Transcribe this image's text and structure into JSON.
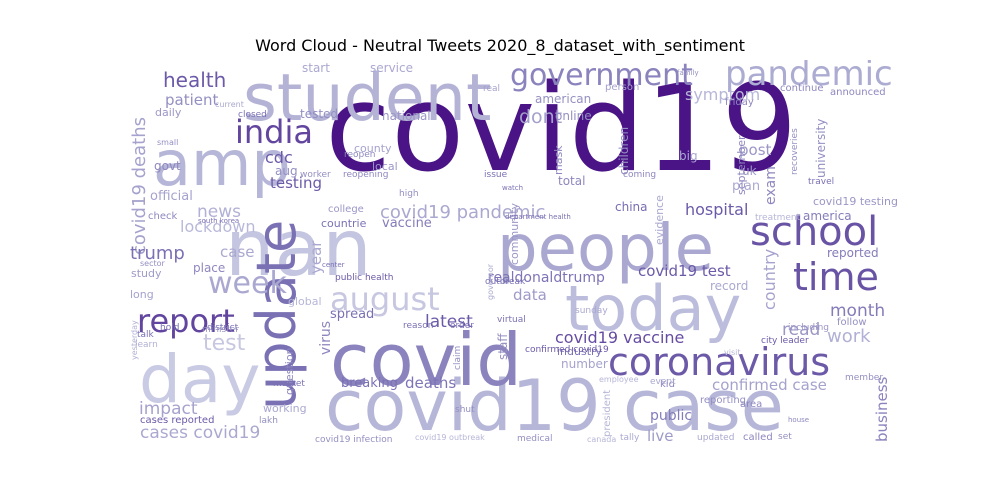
{
  "chart_data": {
    "type": "wordcloud",
    "title": "Word Cloud - Neutral Tweets 2020_8_dataset_with_sentiment",
    "colormap": "Purples",
    "words": [
      {
        "text": "covid19",
        "weight": 1.0
      },
      {
        "text": "covid19 case",
        "weight": 0.55
      },
      {
        "text": "nan",
        "weight": 0.6
      },
      {
        "text": "people",
        "weight": 0.6
      },
      {
        "text": "today",
        "weight": 0.58
      },
      {
        "text": "covid",
        "weight": 0.55
      },
      {
        "text": "student",
        "weight": 0.55
      },
      {
        "text": "amp",
        "weight": 0.52
      },
      {
        "text": "day",
        "weight": 0.5
      },
      {
        "text": "update",
        "weight": 0.5
      },
      {
        "text": "pandemic",
        "weight": 0.35
      },
      {
        "text": "school",
        "weight": 0.38
      },
      {
        "text": "coronavirus",
        "weight": 0.38
      },
      {
        "text": "government",
        "weight": 0.32
      },
      {
        "text": "india",
        "weight": 0.33
      },
      {
        "text": "time",
        "weight": 0.34
      },
      {
        "text": "report",
        "weight": 0.32
      },
      {
        "text": "week",
        "weight": 0.3
      },
      {
        "text": "august",
        "weight": 0.3
      },
      {
        "text": "health",
        "weight": 0.22
      },
      {
        "text": "covid19 deaths",
        "weight": 0.2
      },
      {
        "text": "covid19 pandemic",
        "weight": 0.2
      },
      {
        "text": "covid19 vaccine",
        "weight": 0.2
      },
      {
        "text": "covid19 test",
        "weight": 0.18
      },
      {
        "text": "cases covid19",
        "weight": 0.18
      },
      {
        "text": "month",
        "weight": 0.18
      },
      {
        "text": "trump",
        "weight": 0.18
      },
      {
        "text": "work",
        "weight": 0.18
      },
      {
        "text": "latest",
        "weight": 0.18
      },
      {
        "text": "dont",
        "weight": 0.18
      },
      {
        "text": "hospital",
        "weight": 0.16
      },
      {
        "text": "country",
        "weight": 0.16
      },
      {
        "text": "confirmed case",
        "weight": 0.16
      },
      {
        "text": "impact",
        "weight": 0.16
      },
      {
        "text": "lockdown",
        "weight": 0.15
      },
      {
        "text": "testing",
        "weight": 0.15
      },
      {
        "text": "news",
        "weight": 0.15
      },
      {
        "text": "business",
        "weight": 0.14
      },
      {
        "text": "symptom",
        "weight": 0.14
      },
      {
        "text": "patient",
        "weight": 0.14
      },
      {
        "text": "test",
        "weight": 0.18
      },
      {
        "text": "read",
        "weight": 0.14
      },
      {
        "text": "post",
        "weight": 0.14
      },
      {
        "text": "public",
        "weight": 0.13
      },
      {
        "text": "live",
        "weight": 0.13
      },
      {
        "text": "deaths",
        "weight": 0.13
      },
      {
        "text": "case",
        "weight": 0.13
      },
      {
        "text": "data",
        "weight": 0.13
      },
      {
        "text": "cdc",
        "weight": 0.13
      },
      {
        "text": "exam",
        "weight": 0.13
      },
      {
        "text": "year",
        "weight": 0.14
      },
      {
        "text": "virus",
        "weight": 0.12
      },
      {
        "text": "breaking",
        "weight": 0.12
      },
      {
        "text": "spread",
        "weight": 0.12
      },
      {
        "text": "vaccine",
        "weight": 0.12
      },
      {
        "text": "realdonaldtrump",
        "weight": 0.12
      },
      {
        "text": "children",
        "weight": 0.12
      },
      {
        "text": "university",
        "weight": 0.11
      },
      {
        "text": "service",
        "weight": 0.11
      },
      {
        "text": "start",
        "weight": 0.11
      },
      {
        "text": "official",
        "weight": 0.11
      },
      {
        "text": "reported",
        "weight": 0.11
      },
      {
        "text": "national",
        "weight": 0.11
      },
      {
        "text": "tested",
        "weight": 0.11
      },
      {
        "text": "online",
        "weight": 0.11
      },
      {
        "text": "american",
        "weight": 0.11
      },
      {
        "text": "govt",
        "weight": 0.1
      },
      {
        "text": "america",
        "weight": 0.1
      },
      {
        "text": "china",
        "weight": 0.1
      },
      {
        "text": "plan",
        "weight": 0.1
      },
      {
        "text": "big",
        "weight": 0.1
      },
      {
        "text": "place",
        "weight": 0.1
      },
      {
        "text": "question",
        "weight": 0.1
      },
      {
        "text": "number",
        "weight": 0.1
      },
      {
        "text": "total",
        "weight": 0.1
      },
      {
        "text": "mask",
        "weight": 0.1
      },
      {
        "text": "september",
        "weight": 0.1
      },
      {
        "text": "uk",
        "weight": 0.1
      },
      {
        "text": "record",
        "weight": 0.1
      },
      {
        "text": "staff",
        "weight": 0.1
      },
      {
        "text": "study",
        "weight": 0.09
      },
      {
        "text": "daily",
        "weight": 0.09
      },
      {
        "text": "community",
        "weight": 0.09
      },
      {
        "text": "countrie",
        "weight": 0.09
      },
      {
        "text": "county",
        "weight": 0.09
      },
      {
        "text": "local",
        "weight": 0.09
      },
      {
        "text": "global",
        "weight": 0.09
      },
      {
        "text": "evidence",
        "weight": 0.09
      },
      {
        "text": "industry",
        "weight": 0.09
      },
      {
        "text": "including",
        "weight": 0.08
      },
      {
        "text": "reporting",
        "weight": 0.08
      },
      {
        "text": "long",
        "weight": 0.08
      },
      {
        "text": "check",
        "weight": 0.08
      },
      {
        "text": "aug",
        "weight": 0.09
      },
      {
        "text": "working",
        "weight": 0.08
      },
      {
        "text": "college",
        "weight": 0.08
      },
      {
        "text": "person",
        "weight": 0.08
      },
      {
        "text": "friday",
        "weight": 0.08
      },
      {
        "text": "continue",
        "weight": 0.08
      },
      {
        "text": "announced",
        "weight": 0.08
      },
      {
        "text": "follow",
        "weight": 0.08
      },
      {
        "text": "area",
        "weight": 0.08
      },
      {
        "text": "kid",
        "weight": 0.08
      },
      {
        "text": "event",
        "weight": 0.08
      },
      {
        "text": "called",
        "weight": 0.08
      },
      {
        "text": "set",
        "weight": 0.07
      },
      {
        "text": "updated",
        "weight": 0.07
      },
      {
        "text": "medical",
        "weight": 0.07
      },
      {
        "text": "tally",
        "weight": 0.07
      },
      {
        "text": "shut",
        "weight": 0.07
      },
      {
        "text": "lakh",
        "weight": 0.07
      },
      {
        "text": "cases reported",
        "weight": 0.08
      },
      {
        "text": "covid19 infection",
        "weight": 0.08
      },
      {
        "text": "covid19 outbreak",
        "weight": 0.07
      },
      {
        "text": "confirmed covid19",
        "weight": 0.08
      },
      {
        "text": "city leader",
        "weight": 0.08
      },
      {
        "text": "member",
        "weight": 0.07
      },
      {
        "text": "public health",
        "weight": 0.08
      },
      {
        "text": "worker",
        "weight": 0.07
      },
      {
        "text": "reopen",
        "weight": 0.07
      },
      {
        "text": "reopening",
        "weight": 0.07
      },
      {
        "text": "closed",
        "weight": 0.07
      },
      {
        "text": "coming",
        "weight": 0.07
      },
      {
        "text": "issue",
        "weight": 0.07
      },
      {
        "text": "high",
        "weight": 0.07
      },
      {
        "text": "district",
        "weight": 0.07
      },
      {
        "text": "hold",
        "weight": 0.07
      },
      {
        "text": "talk",
        "weight": 0.07
      },
      {
        "text": "learn",
        "weight": 0.07
      },
      {
        "text": "minister",
        "weight": 0.07
      },
      {
        "text": "market",
        "weight": 0.07
      },
      {
        "text": "reason",
        "weight": 0.07
      },
      {
        "text": "order",
        "weight": 0.07
      },
      {
        "text": "claim",
        "weight": 0.07
      },
      {
        "text": "virtual",
        "weight": 0.07
      },
      {
        "text": "sunday",
        "weight": 0.07
      },
      {
        "text": "outbreak",
        "weight": 0.07
      },
      {
        "text": "president",
        "weight": 0.08
      },
      {
        "text": "recoveries",
        "weight": 0.07
      },
      {
        "text": "treatment",
        "weight": 0.07
      },
      {
        "text": "travel",
        "weight": 0.07
      },
      {
        "text": "real",
        "weight": 0.06
      },
      {
        "text": "current",
        "weight": 0.06
      },
      {
        "text": "small",
        "weight": 0.06
      },
      {
        "text": "sector",
        "weight": 0.06
      },
      {
        "text": "yesterday",
        "weight": 0.06
      },
      {
        "text": "governor",
        "weight": 0.06
      },
      {
        "text": "employee",
        "weight": 0.06
      },
      {
        "text": "canada",
        "weight": 0.06
      },
      {
        "text": "house",
        "weight": 0.05
      },
      {
        "text": "visit",
        "weight": 0.06
      },
      {
        "text": "family",
        "weight": 0.05
      },
      {
        "text": "watch",
        "weight": 0.05
      },
      {
        "text": "center",
        "weight": 0.05
      },
      {
        "text": "south korea",
        "weight": 0.05
      },
      {
        "text": "department health",
        "weight": 0.05
      },
      {
        "text": "covid19 testing",
        "weight": 0.08
      }
    ]
  }
}
